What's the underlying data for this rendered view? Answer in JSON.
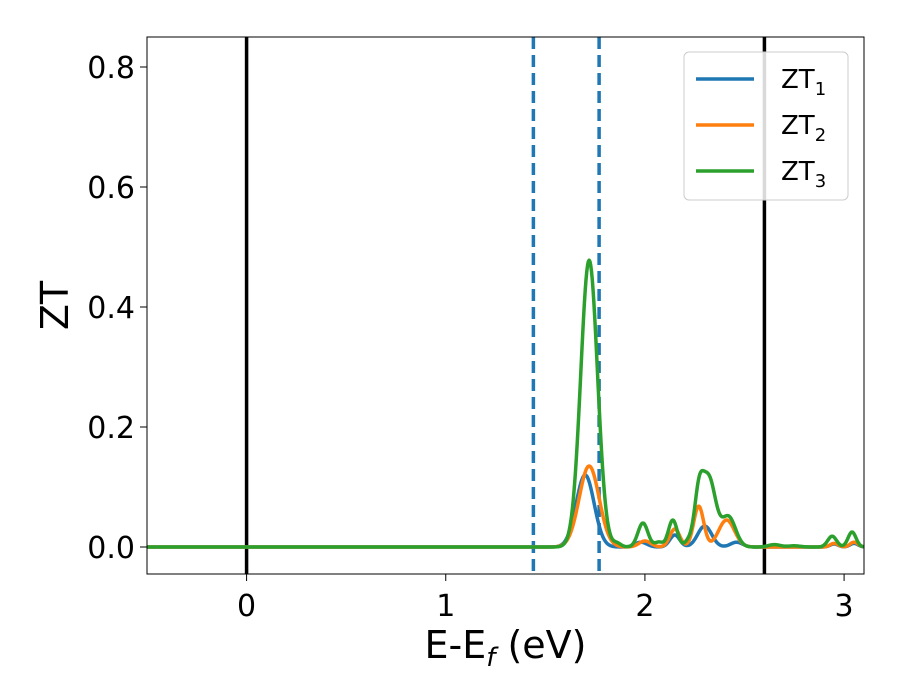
{
  "chart_data": {
    "type": "line",
    "xlabel": "E-E",
    "xlabel_sub": "f",
    "xlabel_unit": " (eV)",
    "ylabel": "ZT",
    "xlim": [
      -0.5,
      3.1
    ],
    "ylim": [
      -0.045,
      0.85
    ],
    "xticks": [
      0,
      1,
      2,
      3
    ],
    "xtick_labels": [
      "0",
      "1",
      "2",
      "3"
    ],
    "yticks": [
      0.0,
      0.2,
      0.4,
      0.6,
      0.8
    ],
    "ytick_labels": [
      "0.0",
      "0.2",
      "0.4",
      "0.6",
      "0.8"
    ],
    "grid": false,
    "legend_position": "top-right",
    "vlines_solid": [
      0.0,
      2.6
    ],
    "vlines_dashed": [
      1.44,
      1.77
    ],
    "series": [
      {
        "name": "ZT",
        "sub": "1",
        "color": "#1f77b4",
        "peaks": [
          [
            1.7,
            0.12,
            0.045
          ],
          [
            1.98,
            0.008,
            0.03
          ],
          [
            2.15,
            0.02,
            0.025
          ],
          [
            2.3,
            0.035,
            0.035
          ],
          [
            2.46,
            0.008,
            0.03
          ],
          [
            2.95,
            0.005,
            0.02
          ],
          [
            3.05,
            0.006,
            0.02
          ]
        ]
      },
      {
        "name": "ZT",
        "sub": "2",
        "color": "#ff7f0e",
        "peaks": [
          [
            1.72,
            0.135,
            0.05
          ],
          [
            2.0,
            0.01,
            0.03
          ],
          [
            2.15,
            0.03,
            0.025
          ],
          [
            2.27,
            0.068,
            0.025
          ],
          [
            2.41,
            0.045,
            0.04
          ],
          [
            2.95,
            0.006,
            0.02
          ],
          [
            3.05,
            0.008,
            0.02
          ]
        ]
      },
      {
        "name": "ZT",
        "sub": "3",
        "color": "#2ca02c",
        "peaks": [
          [
            1.72,
            0.478,
            0.042
          ],
          [
            1.86,
            0.006,
            0.02
          ],
          [
            1.99,
            0.04,
            0.025
          ],
          [
            2.07,
            0.008,
            0.02
          ],
          [
            2.14,
            0.045,
            0.022
          ],
          [
            2.22,
            0.01,
            0.02
          ],
          [
            2.27,
            0.072,
            0.022
          ],
          [
            2.32,
            0.115,
            0.035
          ],
          [
            2.42,
            0.05,
            0.035
          ],
          [
            2.65,
            0.004,
            0.03
          ],
          [
            2.75,
            0.002,
            0.03
          ],
          [
            2.94,
            0.018,
            0.022
          ],
          [
            3.04,
            0.025,
            0.02
          ]
        ]
      }
    ]
  }
}
